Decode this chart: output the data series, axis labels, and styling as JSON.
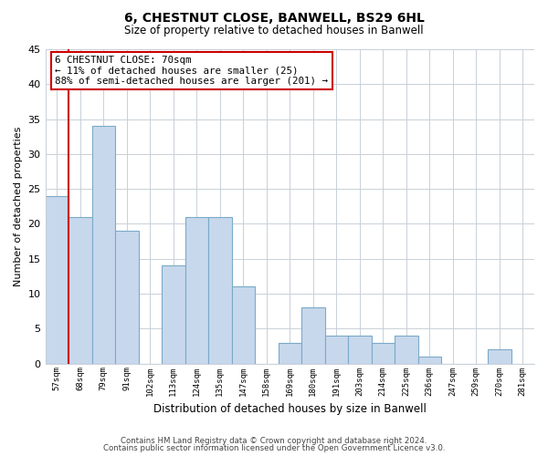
{
  "title": "6, CHESTNUT CLOSE, BANWELL, BS29 6HL",
  "subtitle": "Size of property relative to detached houses in Banwell",
  "xlabel": "Distribution of detached houses by size in Banwell",
  "ylabel": "Number of detached properties",
  "bin_labels": [
    "57sqm",
    "68sqm",
    "79sqm",
    "91sqm",
    "102sqm",
    "113sqm",
    "124sqm",
    "135sqm",
    "147sqm",
    "158sqm",
    "169sqm",
    "180sqm",
    "191sqm",
    "203sqm",
    "214sqm",
    "225sqm",
    "236sqm",
    "247sqm",
    "259sqm",
    "270sqm",
    "281sqm"
  ],
  "bar_heights": [
    24,
    21,
    34,
    19,
    0,
    14,
    21,
    21,
    11,
    0,
    3,
    8,
    4,
    4,
    3,
    4,
    1,
    0,
    0,
    2,
    0
  ],
  "bar_color": "#c8d8ec",
  "bar_edge_color": "#7aaac8",
  "vline_color": "#cc0000",
  "annotation_text_line1": "6 CHESTNUT CLOSE: 70sqm",
  "annotation_text_line2": "← 11% of detached houses are smaller (25)",
  "annotation_text_line3": "88% of semi-detached houses are larger (201) →",
  "annotation_box_color": "#ffffff",
  "annotation_box_edge_color": "#cc0000",
  "ylim": [
    0,
    45
  ],
  "yticks": [
    0,
    5,
    10,
    15,
    20,
    25,
    30,
    35,
    40,
    45
  ],
  "footer_line1": "Contains HM Land Registry data © Crown copyright and database right 2024.",
  "footer_line2": "Contains public sector information licensed under the Open Government Licence v3.0.",
  "background_color": "#ffffff",
  "grid_color": "#c8d0d8",
  "title_fontsize": 10,
  "subtitle_fontsize": 8.5
}
